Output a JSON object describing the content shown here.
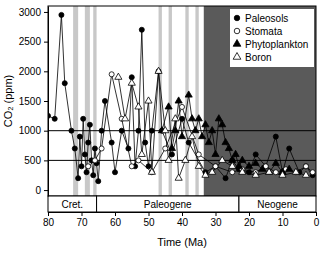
{
  "chart_data": {
    "type": "scatter",
    "x_label": "Time (Ma)",
    "y_label": "CO₂ (ppm)",
    "xlim": [
      80,
      0
    ],
    "xticks": [
      80,
      70,
      60,
      50,
      40,
      30,
      20,
      10,
      0
    ],
    "ylim": [
      -100,
      3100
    ],
    "yticks": [
      0,
      500,
      1000,
      1500,
      2000,
      2500,
      3000
    ],
    "legend": "upper right",
    "hlines": [
      500,
      1000
    ],
    "bands": [
      {
        "start": 72.5,
        "end": 71,
        "color": "#c8c8c8"
      },
      {
        "start": 69,
        "end": 67.5,
        "color": "#c8c8c8"
      },
      {
        "start": 66.5,
        "end": 65.5,
        "color": "#c8c8c8"
      },
      {
        "start": 47,
        "end": 46,
        "color": "#c8c8c8"
      },
      {
        "start": 44,
        "end": 43,
        "color": "#c8c8c8"
      },
      {
        "start": 39,
        "end": 38,
        "color": "#c8c8c8"
      },
      {
        "start": 36,
        "end": 35,
        "color": "#c8c8c8"
      },
      {
        "start": 33.5,
        "end": 0,
        "color": "#5a5a5a"
      }
    ],
    "periods": [
      {
        "label": "Cret.",
        "start": 80,
        "end": 65.5
      },
      {
        "label": "Paleogene",
        "start": 65.5,
        "end": 23
      },
      {
        "label": "Neogene",
        "start": 23,
        "end": 0
      }
    ],
    "series": [
      {
        "name": "Paleosols",
        "color": "#000000",
        "marker": "circle",
        "line_style": "solid",
        "x": [
          80,
          78,
          76,
          75,
          73,
          72,
          71,
          70.5,
          70,
          69.5,
          69,
          68.5,
          68,
          67.5,
          67,
          66.5,
          66,
          65.5,
          65,
          64,
          63,
          61,
          60,
          58,
          56,
          55,
          54,
          53,
          52,
          51,
          50,
          49,
          47,
          46,
          43,
          40,
          38,
          33,
          30,
          27,
          25,
          23,
          20,
          18,
          15,
          12,
          10,
          8,
          5,
          3,
          1
        ],
        "values": [
          1250,
          1200,
          2950,
          1800,
          1000,
          700,
          200,
          900,
          400,
          1200,
          600,
          300,
          800,
          1100,
          500,
          250,
          700,
          450,
          150,
          1000,
          1500,
          800,
          300,
          1000,
          700,
          1900,
          400,
          1000,
          2700,
          800,
          400,
          1000,
          2000,
          1000,
          600,
          1200,
          800,
          300,
          400,
          200,
          500,
          350,
          300,
          600,
          400,
          900,
          300,
          700,
          300,
          400,
          250
        ]
      },
      {
        "name": "Stomata",
        "color": "#000000",
        "marker": "circle-open",
        "line_style": "solid",
        "x": [
          68,
          66,
          64,
          61,
          58,
          55,
          53,
          49,
          45,
          40,
          35,
          30,
          25,
          22,
          18,
          15,
          12,
          9,
          6,
          3,
          1
        ],
        "values": [
          400,
          500,
          700,
          1950,
          1200,
          400,
          500,
          300,
          700,
          1400,
          600,
          400,
          300,
          350,
          300,
          400,
          300,
          350,
          300,
          400,
          300
        ]
      },
      {
        "name": "Phytoplankton",
        "color": "#000000",
        "marker": "triangle",
        "line_style": "solid",
        "x": [
          46,
          44,
          43,
          42,
          41,
          40,
          38,
          37,
          36,
          35,
          34,
          33,
          32,
          31,
          30,
          29,
          28,
          27,
          26,
          25,
          24,
          23,
          22,
          20,
          18,
          16,
          14,
          12,
          10,
          8
        ],
        "values": [
          1000,
          1400,
          700,
          1000,
          1500,
          900,
          1600,
          1200,
          1000,
          1200,
          900,
          1100,
          800,
          1000,
          600,
          1200,
          1100,
          800,
          700,
          500,
          600,
          400,
          500,
          400,
          450,
          350,
          300,
          450,
          300,
          350
        ]
      },
      {
        "name": "Boron",
        "color": "#000000",
        "marker": "triangle-open",
        "line_style": "solid",
        "x": [
          59,
          57,
          55,
          53,
          52,
          50,
          49,
          47,
          45,
          44,
          42,
          41,
          39,
          37,
          35,
          33,
          31,
          28,
          25,
          22,
          18,
          14,
          10,
          6,
          3
        ],
        "values": [
          1900,
          1200,
          1800,
          1400,
          600,
          1500,
          300,
          2000,
          1000,
          500,
          1200,
          200,
          500,
          900,
          400,
          250,
          300,
          500,
          400,
          300,
          250,
          300,
          250,
          300,
          250
        ]
      }
    ]
  }
}
